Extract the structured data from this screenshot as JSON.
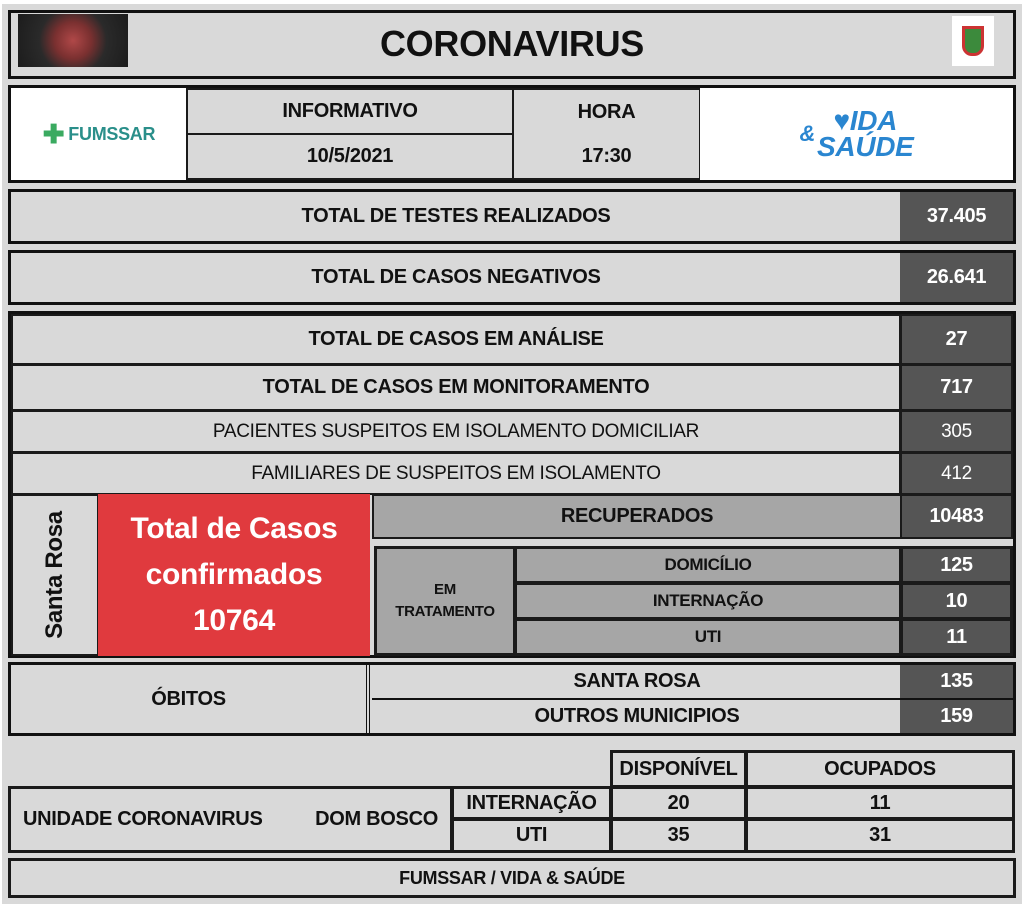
{
  "header": {
    "title": "CORONAVIRUS",
    "virus_image": "coronavirus-image",
    "crest": "municipal-crest-logo"
  },
  "info": {
    "logo_left": "FUMSSAR",
    "informativo_label": "INFORMATIVO",
    "date": "10/5/2021",
    "hora_label": "HORA",
    "time": "17:30",
    "logo_right_line1": "IDA",
    "logo_right_line2": "SAÚDE",
    "logo_right_amp": "&"
  },
  "rows": [
    {
      "label": "TOTAL DE TESTES REALIZADOS",
      "value": "37.405"
    },
    {
      "label": "TOTAL DE CASOS NEGATIVOS",
      "value": "26.641"
    },
    {
      "label": "TOTAL DE CASOS EM ANÁLISE",
      "value": "27"
    },
    {
      "label": "TOTAL DE CASOS EM MONITORAMENTO",
      "value": "717"
    },
    {
      "label": "PACIENTES SUSPEITOS EM ISOLAMENTO DOMICILIAR",
      "value": "305"
    },
    {
      "label": "FAMILIARES DE SUSPEITOS EM ISOLAMENTO",
      "value": "412"
    }
  ],
  "confirmed": {
    "city": "Santa Rosa",
    "line1": "Total de Casos",
    "line2": "confirmados",
    "value": "10764",
    "color": "#e03a3e"
  },
  "recovered": {
    "label": "RECUPERADOS",
    "value": "10483"
  },
  "treatment": {
    "label_line1": "EM",
    "label_line2": "TRATAMENTO",
    "items": [
      {
        "label": "DOMICÍLIO",
        "value": "125"
      },
      {
        "label": "INTERNAÇÃO",
        "value": "10"
      },
      {
        "label": "UTI",
        "value": "11"
      }
    ]
  },
  "deaths": {
    "label": "ÓBITOS",
    "items": [
      {
        "label": "SANTA ROSA",
        "value": "135"
      },
      {
        "label": "OUTROS MUNICIPIOS",
        "value": "159"
      }
    ]
  },
  "unit": {
    "name": "UNIDADE CORONAVIRUS",
    "place": "DOM BOSCO",
    "col_available": "DISPONÍVEL",
    "col_occupied": "OCUPADOS",
    "rows": [
      {
        "label": "INTERNAÇÃO",
        "available": "20",
        "occupied": "11"
      },
      {
        "label": "UTI",
        "available": "35",
        "occupied": "31"
      }
    ]
  },
  "footer": "FUMSSAR / VIDA & SAÚDE"
}
